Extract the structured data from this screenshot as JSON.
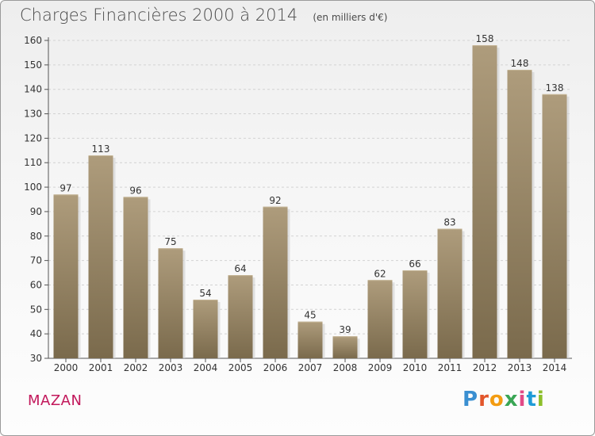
{
  "header": {
    "title": "Charges Financières 2000 à 2014",
    "unit": "(en milliers d'€)"
  },
  "footer": {
    "city": "MAZAN",
    "logo_letters": [
      "P",
      "r",
      "o",
      "x",
      "i",
      "t",
      "i"
    ],
    "logo_colors": [
      "#3a8fd1",
      "#e2562b",
      "#f39c12",
      "#3aa655",
      "#e24a87",
      "#1e9bd7",
      "#8cbf2a"
    ]
  },
  "chart_data": {
    "type": "bar",
    "categories": [
      "2000",
      "2001",
      "2002",
      "2003",
      "2004",
      "2005",
      "2006",
      "2007",
      "2008",
      "2009",
      "2010",
      "2011",
      "2012",
      "2013",
      "2014"
    ],
    "values": [
      97,
      113,
      96,
      75,
      54,
      64,
      92,
      45,
      39,
      62,
      66,
      83,
      158,
      148,
      138
    ],
    "title": "Charges Financières 2000 à 2014",
    "xlabel": "",
    "ylabel": "",
    "ylim": [
      30,
      160
    ],
    "yticks": [
      30,
      40,
      50,
      60,
      70,
      80,
      90,
      100,
      110,
      120,
      130,
      140,
      150,
      160
    ],
    "grid": true,
    "bar_color_top": "#ae9c7c",
    "bar_color_bottom": "#7a6a4c"
  }
}
